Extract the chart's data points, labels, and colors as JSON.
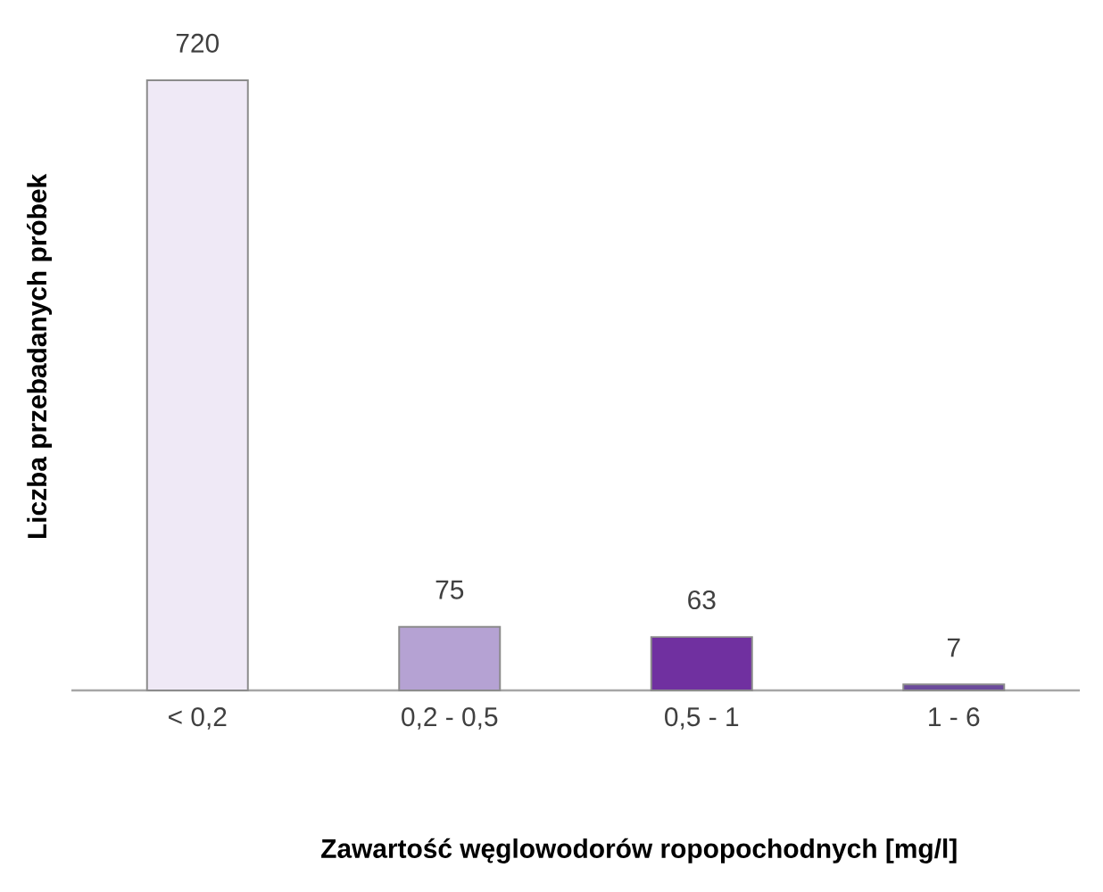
{
  "chart_data": {
    "type": "bar",
    "xlabel": "Zawartość węglowodorów ropopochodnych [mg/l]",
    "ylabel": "Liczba przebadanych próbek",
    "categories": [
      "< 0,2",
      "0,2 - 0,5",
      "0,5 - 1",
      "1 - 6"
    ],
    "values": [
      720,
      75,
      63,
      7
    ],
    "colors": [
      "#efe9f6",
      "#b5a2d3",
      "#7030a0",
      "#6b4a9b"
    ],
    "data_labels": true
  }
}
